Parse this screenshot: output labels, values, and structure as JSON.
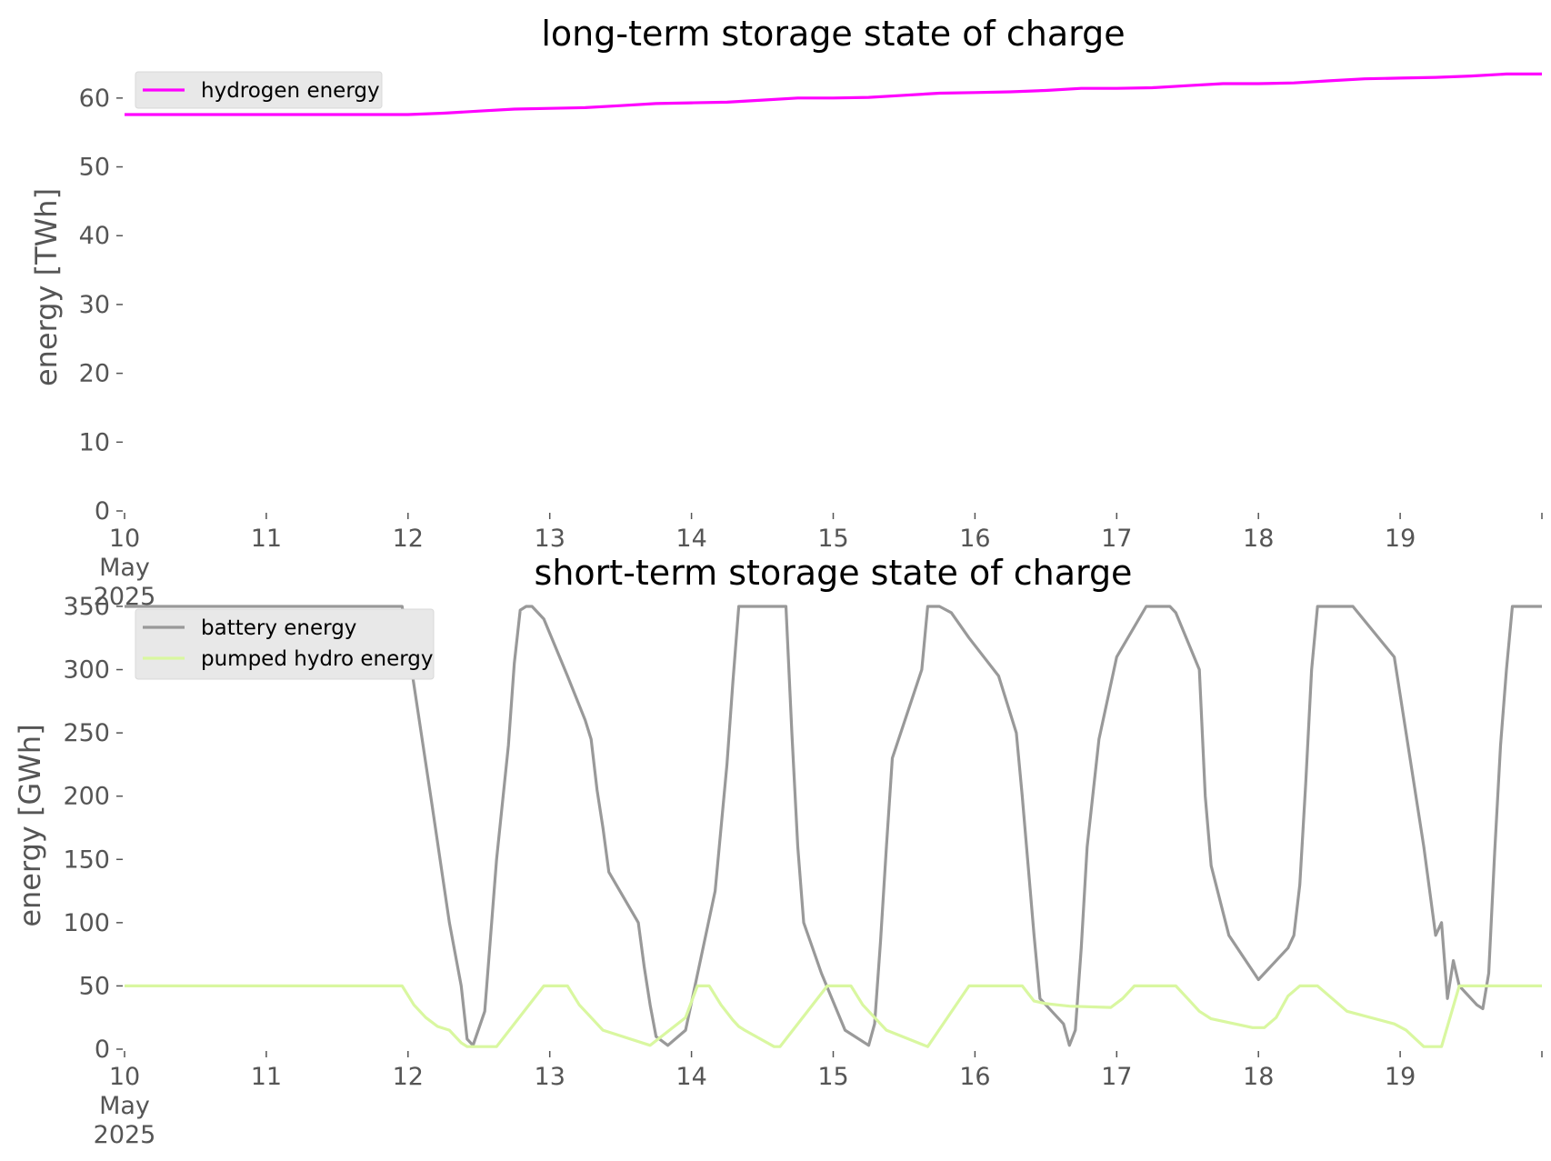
{
  "chart_data": [
    {
      "type": "line",
      "title": "long-term storage state of charge",
      "xlabel": "",
      "ylabel": "energy [TWh]",
      "ylim": [
        0,
        65
      ],
      "yticks": [
        0,
        10,
        20,
        30,
        40,
        50,
        60
      ],
      "xlim": [
        "2025-05-10",
        "2025-05-20"
      ],
      "x_tick_labels": [
        {
          "day": "10",
          "month": "May",
          "year": "2025"
        },
        {
          "day": "11"
        },
        {
          "day": "12"
        },
        {
          "day": "13"
        },
        {
          "day": "14"
        },
        {
          "day": "15"
        },
        {
          "day": "16"
        },
        {
          "day": "17"
        },
        {
          "day": "18"
        },
        {
          "day": "19"
        }
      ],
      "legend_position": "top-left",
      "grid": false,
      "series": [
        {
          "name": "hydrogen energy",
          "color": "#ff00ff",
          "x": [
            "2025-05-10 00:00",
            "2025-05-10 12:00",
            "2025-05-11 00:00",
            "2025-05-11 12:00",
            "2025-05-12 00:00",
            "2025-05-12 06:00",
            "2025-05-12 12:00",
            "2025-05-12 18:00",
            "2025-05-13 00:00",
            "2025-05-13 06:00",
            "2025-05-13 12:00",
            "2025-05-13 18:00",
            "2025-05-14 00:00",
            "2025-05-14 06:00",
            "2025-05-14 12:00",
            "2025-05-14 18:00",
            "2025-05-15 00:00",
            "2025-05-15 06:00",
            "2025-05-15 12:00",
            "2025-05-15 18:00",
            "2025-05-16 00:00",
            "2025-05-16 06:00",
            "2025-05-16 12:00",
            "2025-05-16 18:00",
            "2025-05-17 00:00",
            "2025-05-17 06:00",
            "2025-05-17 12:00",
            "2025-05-17 18:00",
            "2025-05-18 00:00",
            "2025-05-18 06:00",
            "2025-05-18 12:00",
            "2025-05-18 18:00",
            "2025-05-19 00:00",
            "2025-05-19 06:00",
            "2025-05-19 12:00",
            "2025-05-19 18:00",
            "2025-05-20 00:00"
          ],
          "y": [
            57.6,
            57.6,
            57.6,
            57.6,
            57.6,
            57.8,
            58.1,
            58.4,
            58.5,
            58.6,
            58.9,
            59.2,
            59.3,
            59.4,
            59.7,
            60.0,
            60.0,
            60.1,
            60.4,
            60.7,
            60.8,
            60.9,
            61.1,
            61.4,
            61.4,
            61.5,
            61.8,
            62.1,
            62.1,
            62.2,
            62.5,
            62.8,
            62.9,
            63.0,
            63.2,
            63.5,
            63.5
          ]
        }
      ]
    },
    {
      "type": "line",
      "title": "short-term storage state of charge",
      "xlabel": "",
      "ylabel": "energy [GWh]",
      "ylim": [
        0,
        355
      ],
      "yticks": [
        0,
        50,
        100,
        150,
        200,
        250,
        300,
        350
      ],
      "xlim": [
        "2025-05-10",
        "2025-05-20"
      ],
      "x_tick_labels": [
        {
          "day": "10",
          "month": "May",
          "year": "2025"
        },
        {
          "day": "11"
        },
        {
          "day": "12"
        },
        {
          "day": "13"
        },
        {
          "day": "14"
        },
        {
          "day": "15"
        },
        {
          "day": "16"
        },
        {
          "day": "17"
        },
        {
          "day": "18"
        },
        {
          "day": "19"
        }
      ],
      "legend_position": "top-left",
      "grid": false,
      "series": [
        {
          "name": "battery energy",
          "color": "#999999",
          "x": [
            "2025-05-10 00:00",
            "2025-05-11 00:00",
            "2025-05-11 23:00",
            "2025-05-12 04:00",
            "2025-05-12 07:00",
            "2025-05-12 09:00",
            "2025-05-12 10:00",
            "2025-05-12 11:00",
            "2025-05-12 13:00",
            "2025-05-12 15:00",
            "2025-05-12 17:00",
            "2025-05-12 18:00",
            "2025-05-12 19:00",
            "2025-05-12 20:00",
            "2025-05-12 21:00",
            "2025-05-12 23:00",
            "2025-05-13 03:00",
            "2025-05-13 06:00",
            "2025-05-13 07:00",
            "2025-05-13 08:00",
            "2025-05-13 09:00",
            "2025-05-13 10:00",
            "2025-05-13 15:00",
            "2025-05-13 16:00",
            "2025-05-13 17:00",
            "2025-05-13 18:00",
            "2025-05-13 20:00",
            "2025-05-13 23:00",
            "2025-05-14 04:00",
            "2025-05-14 06:00",
            "2025-05-14 07:00",
            "2025-05-14 08:00",
            "2025-05-14 09:00",
            "2025-05-14 14:00",
            "2025-05-14 15:00",
            "2025-05-14 16:00",
            "2025-05-14 17:00",
            "2025-05-14 18:00",
            "2025-05-14 19:00",
            "2025-05-14 22:00",
            "2025-05-15 02:00",
            "2025-05-15 06:00",
            "2025-05-15 07:00",
            "2025-05-15 08:00",
            "2025-05-15 09:00",
            "2025-05-15 10:00",
            "2025-05-15 15:00",
            "2025-05-15 16:00",
            "2025-05-15 17:00",
            "2025-05-15 18:00",
            "2025-05-15 20:00",
            "2025-05-15 23:00",
            "2025-05-16 04:00",
            "2025-05-16 07:00",
            "2025-05-16 08:00",
            "2025-05-16 09:00",
            "2025-05-16 10:00",
            "2025-05-16 11:00",
            "2025-05-16 15:00",
            "2025-05-16 16:00",
            "2025-05-16 17:00",
            "2025-05-16 18:00",
            "2025-05-16 19:00",
            "2025-05-16 21:00",
            "2025-05-17 00:00",
            "2025-05-17 05:00",
            "2025-05-17 06:00",
            "2025-05-17 07:00",
            "2025-05-17 08:00",
            "2025-05-17 09:00",
            "2025-05-17 10:00",
            "2025-05-17 14:00",
            "2025-05-17 15:00",
            "2025-05-17 16:00",
            "2025-05-17 19:00",
            "2025-05-18 00:00",
            "2025-05-18 05:00",
            "2025-05-18 06:00",
            "2025-05-18 07:00",
            "2025-05-18 08:00",
            "2025-05-18 09:00",
            "2025-05-18 10:00",
            "2025-05-18 15:00",
            "2025-05-18 16:00",
            "2025-05-18 23:00",
            "2025-05-19 04:00",
            "2025-05-19 06:00",
            "2025-05-19 07:00",
            "2025-05-19 08:00",
            "2025-05-19 09:00",
            "2025-05-19 10:00",
            "2025-05-19 13:00",
            "2025-05-19 14:00",
            "2025-05-19 15:00",
            "2025-05-19 16:00",
            "2025-05-19 17:00",
            "2025-05-19 18:00",
            "2025-05-19 19:00",
            "2025-05-19 21:00",
            "2025-05-20 00:00"
          ],
          "y": [
            350,
            350,
            350,
            195,
            100,
            50,
            8,
            3,
            30,
            150,
            240,
            305,
            347,
            350,
            350,
            340,
            295,
            260,
            245,
            205,
            175,
            140,
            100,
            65,
            35,
            10,
            3,
            15,
            125,
            225,
            290,
            350,
            350,
            350,
            350,
            350,
            250,
            160,
            100,
            60,
            15,
            3,
            20,
            85,
            160,
            230,
            300,
            350,
            350,
            350,
            345,
            325,
            295,
            250,
            200,
            145,
            90,
            40,
            20,
            3,
            15,
            80,
            160,
            245,
            310,
            350,
            350,
            350,
            350,
            350,
            345,
            300,
            200,
            145,
            90,
            55,
            80,
            90,
            130,
            210,
            300,
            350,
            350,
            350,
            310,
            160,
            90,
            100,
            40,
            70,
            50,
            35,
            32,
            60,
            155,
            240,
            300,
            350,
            350,
            350
          ]
        },
        {
          "name": "pumped hydro energy",
          "color": "#d9f7a0",
          "x": [
            "2025-05-10 00:00",
            "2025-05-11 23:00",
            "2025-05-12 01:00",
            "2025-05-12 03:00",
            "2025-05-12 05:00",
            "2025-05-12 07:00",
            "2025-05-12 08:00",
            "2025-05-12 09:00",
            "2025-05-12 10:00",
            "2025-05-12 15:00",
            "2025-05-12 23:00",
            "2025-05-13 01:00",
            "2025-05-13 03:00",
            "2025-05-13 05:00",
            "2025-05-13 07:00",
            "2025-05-13 08:00",
            "2025-05-13 09:00",
            "2025-05-13 17:00",
            "2025-05-13 23:00",
            "2025-05-14 01:00",
            "2025-05-14 03:00",
            "2025-05-14 05:00",
            "2025-05-14 07:00",
            "2025-05-14 08:00",
            "2025-05-14 09:00",
            "2025-05-14 14:00",
            "2025-05-14 15:00",
            "2025-05-14 23:00",
            "2025-05-15 01:00",
            "2025-05-15 03:00",
            "2025-05-15 05:00",
            "2025-05-15 07:00",
            "2025-05-15 08:00",
            "2025-05-15 09:00",
            "2025-05-15 16:00",
            "2025-05-15 23:00",
            "2025-05-16 01:00",
            "2025-05-16 08:00",
            "2025-05-16 10:00",
            "2025-05-16 12:00",
            "2025-05-16 14:00",
            "2025-05-16 16:00",
            "2025-05-16 23:00",
            "2025-05-17 01:00",
            "2025-05-17 03:00",
            "2025-05-17 05:00",
            "2025-05-17 07:00",
            "2025-05-17 08:00",
            "2025-05-17 09:00",
            "2025-05-17 10:00",
            "2025-05-17 12:00",
            "2025-05-17 14:00",
            "2025-05-17 16:00",
            "2025-05-17 23:00",
            "2025-05-18 01:00",
            "2025-05-18 03:00",
            "2025-05-18 05:00",
            "2025-05-18 07:00",
            "2025-05-18 08:00",
            "2025-05-18 09:00",
            "2025-05-18 10:00",
            "2025-05-18 15:00",
            "2025-05-18 23:00",
            "2025-05-19 01:00",
            "2025-05-19 04:00",
            "2025-05-19 07:00",
            "2025-05-19 10:00",
            "2025-05-19 12:00",
            "2025-05-19 14:00",
            "2025-05-20 00:00"
          ],
          "y": [
            50,
            50,
            35,
            25,
            18,
            15,
            10,
            5,
            2,
            2,
            50,
            50,
            50,
            35,
            25,
            20,
            15,
            3,
            25,
            50,
            50,
            35,
            23,
            18,
            15,
            2,
            2,
            50,
            50,
            50,
            35,
            25,
            20,
            15,
            2,
            50,
            50,
            50,
            38,
            36,
            35,
            34,
            33,
            40,
            50,
            50,
            50,
            50,
            50,
            50,
            40,
            30,
            24,
            17,
            17,
            25,
            42,
            50,
            50,
            50,
            50,
            30,
            20,
            15,
            2,
            2,
            50,
            50,
            50,
            50
          ]
        }
      ]
    }
  ]
}
